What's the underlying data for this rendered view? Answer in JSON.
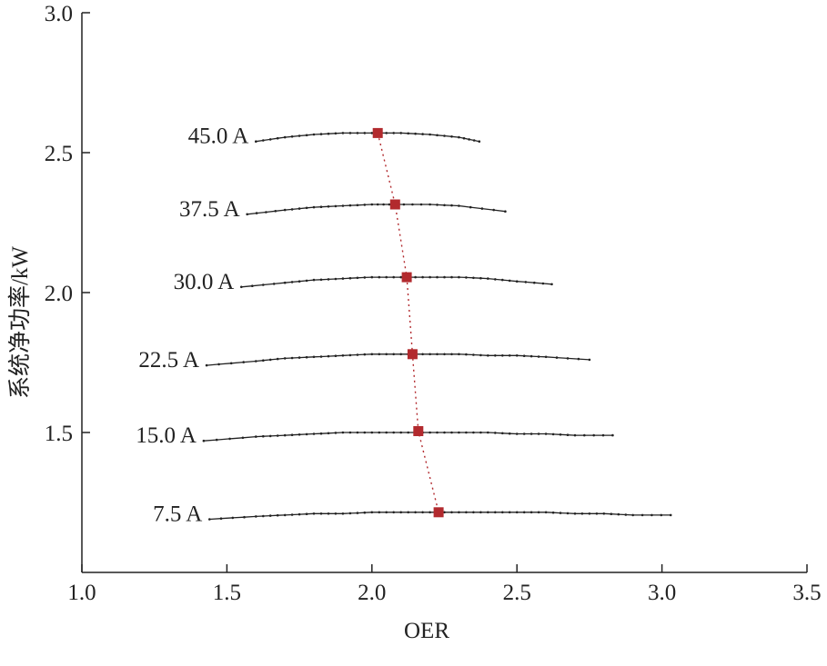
{
  "chart_data": {
    "type": "line",
    "title": "",
    "xlabel": "OER",
    "ylabel": "系统净功率/kW",
    "xlim": [
      1.0,
      3.5
    ],
    "ylim": [
      1.0,
      3.0
    ],
    "xticks": [
      "1.0",
      "1.5",
      "2.0",
      "2.5",
      "3.0",
      "3.5"
    ],
    "yticks": [
      "1.5",
      "2.0",
      "2.5",
      "3.0"
    ],
    "grid": false,
    "colors": {
      "series": "#222222",
      "optimum": "#b22a2e",
      "axis": "#222222"
    },
    "series": [
      {
        "name": "45.0 A",
        "x": [
          1.6,
          1.7,
          1.8,
          1.9,
          2.0,
          2.1,
          2.2,
          2.3,
          2.37
        ],
        "y": [
          2.54,
          2.555,
          2.565,
          2.57,
          2.57,
          2.57,
          2.565,
          2.555,
          2.54
        ]
      },
      {
        "name": "37.5 A",
        "x": [
          1.57,
          1.7,
          1.8,
          1.9,
          2.0,
          2.08,
          2.2,
          2.3,
          2.46
        ],
        "y": [
          2.28,
          2.295,
          2.305,
          2.31,
          2.315,
          2.315,
          2.315,
          2.31,
          2.29
        ]
      },
      {
        "name": "30.0 A",
        "x": [
          1.55,
          1.7,
          1.8,
          1.9,
          2.0,
          2.1,
          2.2,
          2.3,
          2.4,
          2.5,
          2.62
        ],
        "y": [
          2.02,
          2.035,
          2.045,
          2.05,
          2.055,
          2.055,
          2.055,
          2.055,
          2.05,
          2.04,
          2.03
        ]
      },
      {
        "name": "22.5 A",
        "x": [
          1.43,
          1.6,
          1.7,
          1.8,
          1.9,
          2.0,
          2.1,
          2.2,
          2.3,
          2.4,
          2.5,
          2.6,
          2.75
        ],
        "y": [
          1.74,
          1.755,
          1.765,
          1.77,
          1.775,
          1.78,
          1.78,
          1.78,
          1.78,
          1.775,
          1.775,
          1.77,
          1.76
        ]
      },
      {
        "name": "15.0 A",
        "x": [
          1.42,
          1.6,
          1.7,
          1.8,
          1.9,
          2.0,
          2.1,
          2.2,
          2.3,
          2.4,
          2.5,
          2.6,
          2.7,
          2.83
        ],
        "y": [
          1.47,
          1.485,
          1.49,
          1.495,
          1.5,
          1.5,
          1.5,
          1.5,
          1.5,
          1.5,
          1.495,
          1.495,
          1.49,
          1.49
        ]
      },
      {
        "name": "7.5 A",
        "x": [
          1.44,
          1.6,
          1.7,
          1.8,
          1.9,
          2.0,
          2.1,
          2.2,
          2.3,
          2.4,
          2.5,
          2.6,
          2.7,
          2.8,
          2.9,
          3.03
        ],
        "y": [
          1.19,
          1.2,
          1.205,
          1.21,
          1.21,
          1.215,
          1.215,
          1.215,
          1.215,
          1.215,
          1.215,
          1.215,
          1.21,
          1.21,
          1.205,
          1.205
        ]
      }
    ],
    "optimum": {
      "x": [
        2.02,
        2.08,
        2.12,
        2.14,
        2.16,
        2.23
      ],
      "y": [
        2.57,
        2.315,
        2.055,
        1.78,
        1.505,
        1.215
      ]
    }
  }
}
